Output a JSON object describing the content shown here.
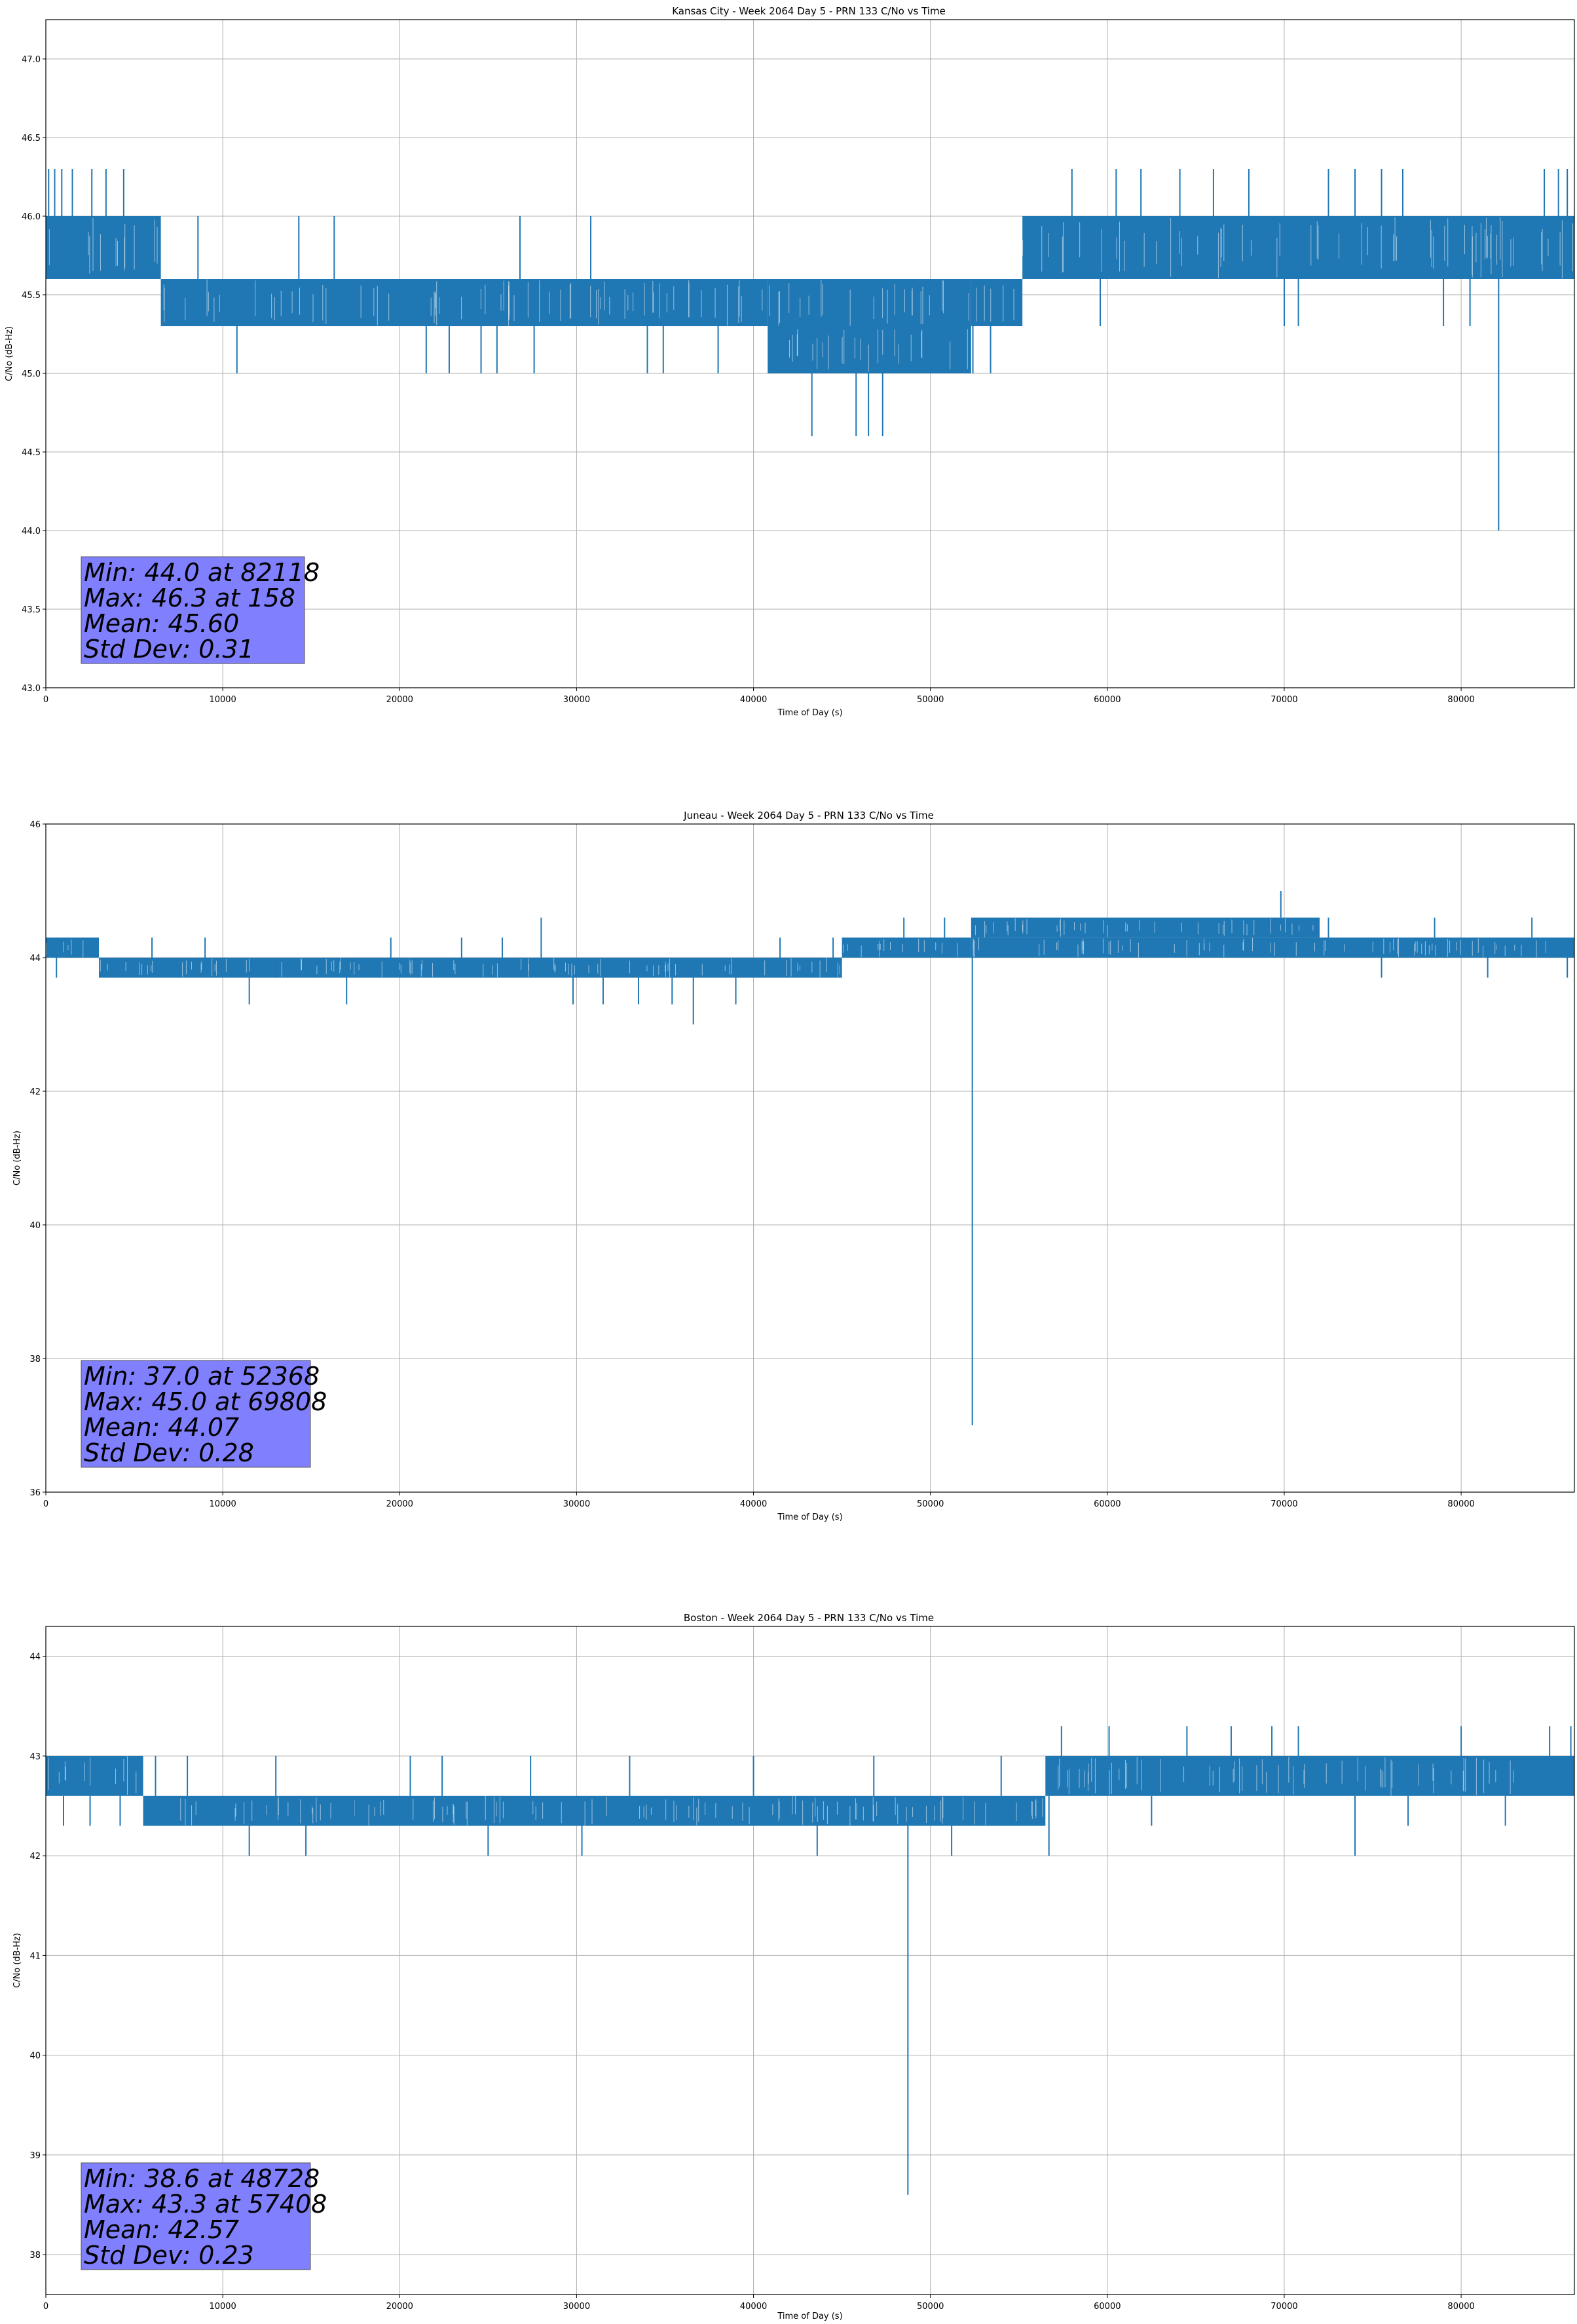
{
  "figure": {
    "xlabel": "Time of Day (s)",
    "ylabel": "C/No (dB-Hz)",
    "line_color": "#1f77b4",
    "grid_color": "#b0b0b0",
    "stats_box_color": "#8080ff"
  },
  "chart_data": [
    {
      "type": "line",
      "title": "Kansas City - Week 2064 Day 5 - PRN 133 C/No vs Time",
      "xlabel": "Time of Day (s)",
      "ylabel": "C/No (dB-Hz)",
      "xlim": [
        0,
        86400
      ],
      "ylim": [
        43.0,
        47.25
      ],
      "xticks": [
        "0",
        "10000",
        "20000",
        "30000",
        "40000",
        "50000",
        "60000",
        "70000",
        "80000"
      ],
      "xtick_values": [
        0,
        10000,
        20000,
        30000,
        40000,
        50000,
        60000,
        70000,
        80000
      ],
      "yticks": [
        "43.0",
        "43.5",
        "44.0",
        "44.5",
        "45.0",
        "45.5",
        "46.0",
        "46.5",
        "47.0"
      ],
      "ytick_values": [
        43.0,
        43.5,
        44.0,
        44.5,
        45.0,
        45.5,
        46.0,
        46.5,
        47.0
      ],
      "grid": true,
      "series": [
        {
          "bands": [
            {
              "x": [
                0,
                6500
              ],
              "y": [
                45.6,
                46.0
              ]
            },
            {
              "x": [
                6500,
                40800
              ],
              "y": [
                45.3,
                45.6
              ]
            },
            {
              "x": [
                40800,
                52300
              ],
              "y": [
                45.0,
                45.3
              ]
            },
            {
              "x": [
                40800,
                52300
              ],
              "y": [
                45.3,
                45.6
              ]
            },
            {
              "x": [
                52300,
                55200
              ],
              "y": [
                45.3,
                45.6
              ]
            },
            {
              "x": [
                55200,
                86400
              ],
              "y": [
                45.6,
                46.0
              ]
            }
          ],
          "spikes": [
            [
              158,
              46.3
            ],
            [
              500,
              46.3
            ],
            [
              900,
              46.3
            ],
            [
              1500,
              46.3
            ],
            [
              2600,
              46.3
            ],
            [
              3400,
              46.3
            ],
            [
              4400,
              46.3
            ],
            [
              6600,
              45.3
            ],
            [
              7300,
              45.3
            ],
            [
              8600,
              46.0
            ],
            [
              10800,
              45.0
            ],
            [
              12500,
              45.6
            ],
            [
              14300,
              46.0
            ],
            [
              16300,
              46.0
            ],
            [
              21500,
              45.0
            ],
            [
              22800,
              45.0
            ],
            [
              24600,
              45.0
            ],
            [
              25500,
              45.0
            ],
            [
              26800,
              46.0
            ],
            [
              27600,
              45.0
            ],
            [
              30800,
              46.0
            ],
            [
              34000,
              45.0
            ],
            [
              34900,
              45.0
            ],
            [
              38000,
              45.0
            ],
            [
              43300,
              44.6
            ],
            [
              45800,
              44.6
            ],
            [
              46500,
              44.6
            ],
            [
              47300,
              44.6
            ],
            [
              50500,
              45.0
            ],
            [
              52400,
              45.0
            ],
            [
              53400,
              45.0
            ],
            [
              58000,
              46.3
            ],
            [
              59600,
              45.3
            ],
            [
              60500,
              46.3
            ],
            [
              61900,
              46.3
            ],
            [
              64100,
              46.3
            ],
            [
              66000,
              46.3
            ],
            [
              68000,
              46.3
            ],
            [
              70000,
              45.3
            ],
            [
              70800,
              45.3
            ],
            [
              72500,
              46.3
            ],
            [
              74000,
              46.3
            ],
            [
              75500,
              46.3
            ],
            [
              76700,
              46.3
            ],
            [
              79000,
              45.3
            ],
            [
              80500,
              45.3
            ],
            [
              82118,
              44.0
            ],
            [
              84700,
              46.3
            ],
            [
              85500,
              46.3
            ],
            [
              86000,
              46.3
            ]
          ]
        }
      ],
      "stats": {
        "min": "Min: 44.0 at 82118",
        "max": "Max: 46.3 at 158",
        "mean": "Mean: 45.60",
        "std": "Std Dev: 0.31"
      }
    },
    {
      "type": "line",
      "title": "Juneau - Week 2064 Day 5 - PRN 133 C/No vs Time",
      "xlabel": "Time of Day (s)",
      "ylabel": "C/No (dB-Hz)",
      "xlim": [
        0,
        86400
      ],
      "ylim": [
        36,
        46
      ],
      "xticks": [
        "0",
        "10000",
        "20000",
        "30000",
        "40000",
        "50000",
        "60000",
        "70000",
        "80000"
      ],
      "xtick_values": [
        0,
        10000,
        20000,
        30000,
        40000,
        50000,
        60000,
        70000,
        80000
      ],
      "yticks": [
        "36",
        "38",
        "40",
        "42",
        "44",
        "46"
      ],
      "ytick_values": [
        36,
        38,
        40,
        42,
        44,
        46
      ],
      "grid": true,
      "series": [
        {
          "bands": [
            {
              "x": [
                0,
                3000
              ],
              "y": [
                44.0,
                44.3
              ]
            },
            {
              "x": [
                3000,
                45000
              ],
              "y": [
                43.7,
                44.0
              ]
            },
            {
              "x": [
                45000,
                52300
              ],
              "y": [
                44.0,
                44.3
              ]
            },
            {
              "x": [
                52300,
                72000
              ],
              "y": [
                44.3,
                44.6
              ]
            },
            {
              "x": [
                52300,
                86400
              ],
              "y": [
                44.0,
                44.3
              ]
            }
          ],
          "spikes": [
            [
              600,
              43.7
            ],
            [
              1800,
              44.3
            ],
            [
              4200,
              43.7
            ],
            [
              6000,
              44.3
            ],
            [
              7500,
              43.7
            ],
            [
              9000,
              44.3
            ],
            [
              11500,
              43.3
            ],
            [
              13000,
              43.7
            ],
            [
              15200,
              43.7
            ],
            [
              17000,
              43.3
            ],
            [
              19500,
              44.3
            ],
            [
              21500,
              43.7
            ],
            [
              23500,
              44.3
            ],
            [
              25800,
              44.3
            ],
            [
              28000,
              44.6
            ],
            [
              29800,
              43.3
            ],
            [
              31500,
              43.3
            ],
            [
              33500,
              43.3
            ],
            [
              35400,
              43.3
            ],
            [
              36600,
              43.0
            ],
            [
              39000,
              43.3
            ],
            [
              41500,
              44.3
            ],
            [
              44500,
              44.3
            ],
            [
              48500,
              44.6
            ],
            [
              50800,
              44.6
            ],
            [
              52368,
              37.0
            ],
            [
              56000,
              44.6
            ],
            [
              60000,
              44.6
            ],
            [
              63500,
              44.6
            ],
            [
              66500,
              44.6
            ],
            [
              69808,
              45.0
            ],
            [
              72500,
              44.6
            ],
            [
              75500,
              43.7
            ],
            [
              78500,
              44.6
            ],
            [
              81500,
              43.7
            ],
            [
              84000,
              44.6
            ],
            [
              86000,
              43.7
            ]
          ]
        }
      ],
      "stats": {
        "min": "Min: 37.0 at 52368",
        "max": "Max: 45.0 at 69808",
        "mean": "Mean: 44.07",
        "std": "Std Dev: 0.28"
      }
    },
    {
      "type": "line",
      "title": "Boston - Week 2064 Day 5 - PRN 133 C/No vs Time",
      "xlabel": "Time of Day (s)",
      "ylabel": "C/No (dB-Hz)",
      "xlim": [
        0,
        86400
      ],
      "ylim": [
        37.6,
        44.3
      ],
      "xticks": [
        "0",
        "10000",
        "20000",
        "30000",
        "40000",
        "50000",
        "60000",
        "70000",
        "80000"
      ],
      "xtick_values": [
        0,
        10000,
        20000,
        30000,
        40000,
        50000,
        60000,
        70000,
        80000
      ],
      "yticks": [
        "38",
        "39",
        "40",
        "41",
        "42",
        "43",
        "44"
      ],
      "ytick_values": [
        38,
        39,
        40,
        41,
        42,
        43,
        44
      ],
      "grid": true,
      "series": [
        {
          "bands": [
            {
              "x": [
                0,
                5500
              ],
              "y": [
                42.6,
                43.0
              ]
            },
            {
              "x": [
                5500,
                56500
              ],
              "y": [
                42.3,
                42.6
              ]
            },
            {
              "x": [
                56500,
                86400
              ],
              "y": [
                42.6,
                43.0
              ]
            }
          ],
          "spikes": [
            [
              1000,
              42.3
            ],
            [
              2500,
              42.3
            ],
            [
              4200,
              42.3
            ],
            [
              6200,
              43.0
            ],
            [
              8000,
              43.0
            ],
            [
              11500,
              42.0
            ],
            [
              13000,
              43.0
            ],
            [
              14700,
              42.0
            ],
            [
              17400,
              42.3
            ],
            [
              20600,
              43.0
            ],
            [
              22400,
              43.0
            ],
            [
              25000,
              42.0
            ],
            [
              27400,
              43.0
            ],
            [
              30300,
              42.0
            ],
            [
              33000,
              43.0
            ],
            [
              36200,
              42.3
            ],
            [
              40000,
              43.0
            ],
            [
              43600,
              42.0
            ],
            [
              46800,
              43.0
            ],
            [
              48728,
              38.6
            ],
            [
              51200,
              42.0
            ],
            [
              54000,
              43.0
            ],
            [
              56700,
              42.0
            ],
            [
              57408,
              43.3
            ],
            [
              60100,
              43.3
            ],
            [
              62500,
              42.3
            ],
            [
              64500,
              43.3
            ],
            [
              67000,
              43.3
            ],
            [
              69300,
              43.3
            ],
            [
              70800,
              43.3
            ],
            [
              74000,
              42.0
            ],
            [
              77000,
              42.3
            ],
            [
              80000,
              43.3
            ],
            [
              82500,
              42.3
            ],
            [
              85000,
              43.3
            ],
            [
              86200,
              43.3
            ]
          ]
        }
      ],
      "stats": {
        "min": "Min: 38.6 at 48728",
        "max": "Max: 43.3 at 57408",
        "mean": "Mean: 42.57",
        "std": "Std Dev: 0.23"
      }
    }
  ]
}
